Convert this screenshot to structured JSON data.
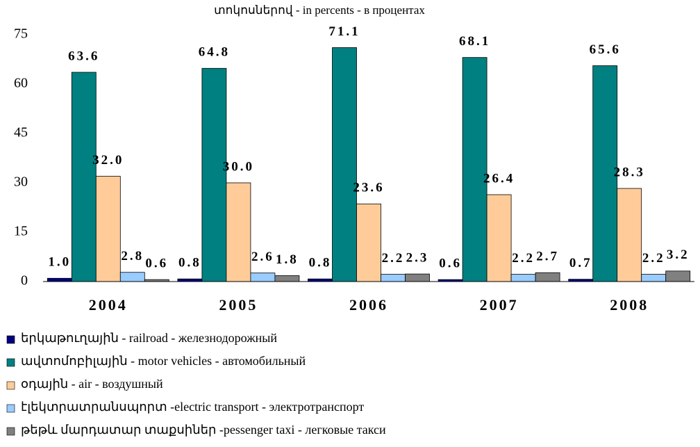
{
  "chart_data": {
    "type": "bar",
    "title": "տոկոսներով - in percents - в процентах",
    "categories": [
      "2004",
      "2005",
      "2006",
      "2007",
      "2008"
    ],
    "ylim": [
      0,
      75
    ],
    "yticks": [
      0,
      15,
      30,
      45,
      60,
      75
    ],
    "grid": false,
    "legend": "bottom",
    "series": [
      {
        "name": "երկաթուղային - railroad - железнодорожный",
        "color": "#000080",
        "values": [
          1.0,
          0.8,
          0.8,
          0.6,
          0.7
        ],
        "value_labels": [
          "1.0",
          "0.8",
          "0.8",
          "0.6",
          "0.7"
        ]
      },
      {
        "name": "ավտոմոբիլային - motor vehicles - автомобильный",
        "color": "#008080",
        "values": [
          63.6,
          64.8,
          71.1,
          68.1,
          65.6
        ],
        "value_labels": [
          "63.6",
          "64.8",
          "71.1",
          "68.1",
          "65.6"
        ]
      },
      {
        "name": "օդային - air - воздушный",
        "color": "#ffcc99",
        "values": [
          32.0,
          30.0,
          23.6,
          26.4,
          28.3
        ],
        "value_labels": [
          "32.0",
          "30.0",
          "23.6",
          "26.4",
          "28.3"
        ]
      },
      {
        "name": "էլեկտրատրանսպորտ -electric transport - электротранспорт",
        "color": "#99ccff",
        "values": [
          2.8,
          2.6,
          2.2,
          2.2,
          2.2
        ],
        "value_labels": [
          "2.8",
          "2.6",
          "2.2",
          "2.2",
          "2.2"
        ]
      },
      {
        "name": "թեթև մարդատար տաքսիներ -pessenger taxi - легковые такси",
        "color": "#808080",
        "values": [
          0.6,
          1.8,
          2.3,
          2.7,
          3.2
        ],
        "value_labels": [
          "0.6",
          "1.8",
          "2.3",
          "2.7",
          "3.2"
        ]
      }
    ]
  }
}
